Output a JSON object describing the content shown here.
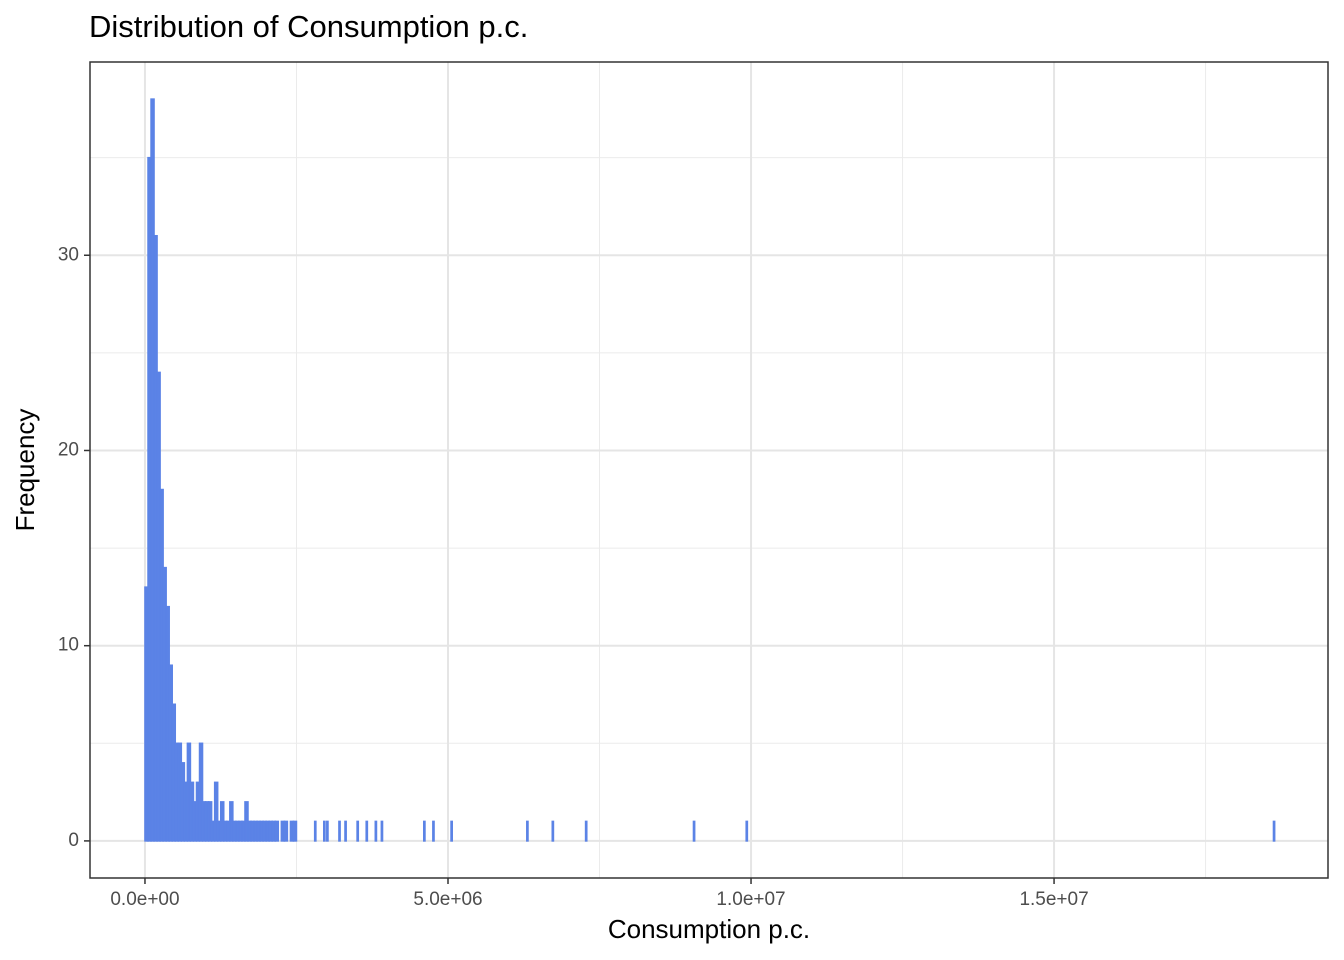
{
  "chart_data": {
    "type": "histogram",
    "title": "Distribution of Consumption p.c.",
    "xlabel": "Consumption p.c.",
    "ylabel": "Frequency",
    "color": "#5b83e6",
    "grid": true,
    "xlim": [
      -907000,
      19520000
    ],
    "ylim": [
      -1.9,
      39.9
    ],
    "xticks": [
      {
        "value": 0,
        "label": "0.0e+00"
      },
      {
        "value": 5000000,
        "label": "5.0e+06"
      },
      {
        "value": 10000000,
        "label": "1.0e+07"
      },
      {
        "value": 15000000,
        "label": "1.5e+07"
      }
    ],
    "xminorticks": [
      2500000,
      7500000,
      12500000,
      17500000
    ],
    "yticks": [
      0,
      10,
      20,
      30
    ],
    "yminorticks": [
      5,
      15,
      25,
      35
    ],
    "bins": [
      0,
      50000,
      100000,
      150000,
      200000,
      250000,
      300000,
      350000,
      400000,
      450000,
      500000,
      550000,
      600000,
      650000,
      700000,
      750000,
      800000,
      850000,
      900000,
      950000,
      1000000,
      1050000,
      1100000,
      1150000,
      1200000,
      1250000,
      1300000,
      1350000,
      1400000,
      1450000,
      1500000,
      1550000,
      1600000,
      1650000,
      1700000,
      1750000,
      1800000,
      1850000,
      1900000,
      1950000,
      2000000,
      2050000,
      2100000,
      2150000,
      2200000,
      2250000,
      2300000,
      2350000,
      2400000,
      2450000,
      2500000,
      2800000,
      2820000,
      2950000,
      2970000,
      3000000,
      3020000,
      3200000,
      3220000,
      3300000,
      3320000,
      3500000,
      3520000,
      3650000,
      3670000,
      3800000,
      3820000,
      3900000,
      3920000,
      4600000,
      4620000,
      4750000,
      4770000,
      5050000,
      5070000,
      6300000,
      6320000,
      6720000,
      6740000,
      7270000,
      7290000,
      9050000,
      9070000,
      9920000,
      9940000,
      18620000,
      18640000
    ],
    "values": [
      13,
      35,
      38,
      31,
      24,
      18,
      14,
      12,
      9,
      7,
      5,
      5,
      4,
      3,
      5,
      3,
      2,
      3,
      5,
      2,
      2,
      2,
      1,
      3,
      1,
      2,
      1,
      1,
      2,
      1,
      1,
      1,
      1,
      2,
      1,
      1,
      1,
      1,
      1,
      1,
      1,
      1,
      1,
      1,
      0,
      1,
      1,
      0,
      1,
      1,
      0,
      1,
      0,
      1,
      0,
      1,
      0,
      1,
      0,
      1,
      0,
      1,
      0,
      1,
      0,
      1,
      0,
      1,
      0,
      1,
      0,
      1,
      0,
      1,
      0,
      1,
      0,
      1,
      0,
      1,
      0,
      1,
      0,
      1,
      0,
      1
    ]
  }
}
